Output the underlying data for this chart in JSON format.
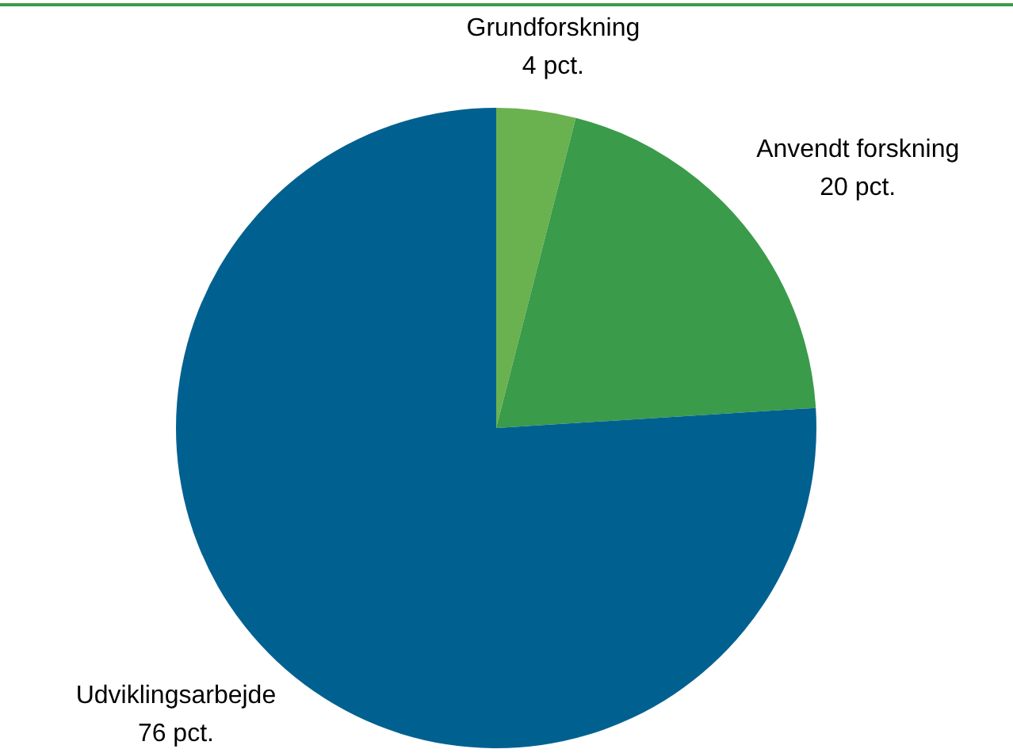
{
  "chart_data": {
    "type": "pie",
    "categories": [
      "Grundforskning",
      "Anvendt forskning",
      "Udviklingsarbejde"
    ],
    "values": [
      4,
      20,
      76
    ],
    "colors": [
      "#6ab150",
      "#3a9b4a",
      "#006190"
    ],
    "value_labels": [
      "4 pct.",
      "20 pct.",
      "76 pct."
    ],
    "legend": false
  }
}
